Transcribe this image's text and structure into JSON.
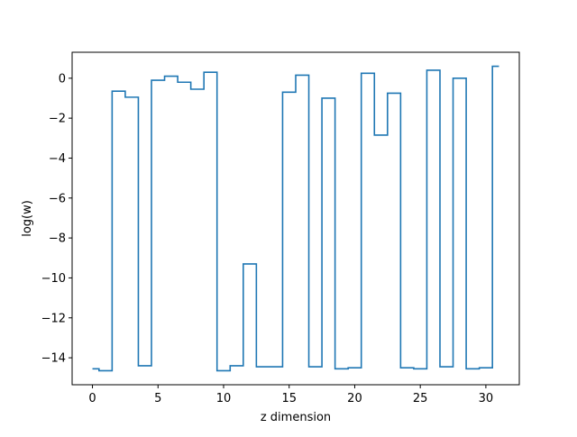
{
  "chart_data": {
    "type": "line",
    "drawstyle": "steps-mid",
    "xlabel": "z dimension",
    "ylabel": "log(w)",
    "xlim": [
      -1.55,
      32.55
    ],
    "ylim": [
      -15.35,
      1.3
    ],
    "grid": false,
    "xticks": [
      0,
      5,
      10,
      15,
      20,
      25,
      30
    ],
    "yticks": [
      0,
      -2,
      -4,
      -6,
      -8,
      -10,
      -12,
      -14
    ],
    "xtick_labels": [
      "0",
      "5",
      "10",
      "15",
      "20",
      "25",
      "30"
    ],
    "ytick_labels": [
      "0",
      "−2",
      "−4",
      "−6",
      "−8",
      "−10",
      "−12",
      "−14"
    ],
    "series": [
      {
        "color": "#1f77b4",
        "x": [
          0,
          1,
          2,
          3,
          4,
          5,
          6,
          7,
          8,
          9,
          10,
          11,
          12,
          13,
          14,
          15,
          16,
          17,
          18,
          19,
          20,
          21,
          22,
          23,
          24,
          25,
          26,
          27,
          28,
          29,
          30,
          31
        ],
        "y": [
          -14.55,
          -14.65,
          -0.65,
          -0.95,
          -14.4,
          -0.1,
          0.1,
          -0.2,
          -0.55,
          0.3,
          -14.65,
          -14.4,
          -9.3,
          -14.45,
          -14.45,
          -0.7,
          0.15,
          -14.45,
          -1.0,
          -14.55,
          -14.5,
          0.25,
          -2.85,
          -0.75,
          -14.5,
          -14.55,
          0.4,
          -14.45,
          0.0,
          -14.55,
          -14.5,
          0.6
        ]
      }
    ]
  }
}
